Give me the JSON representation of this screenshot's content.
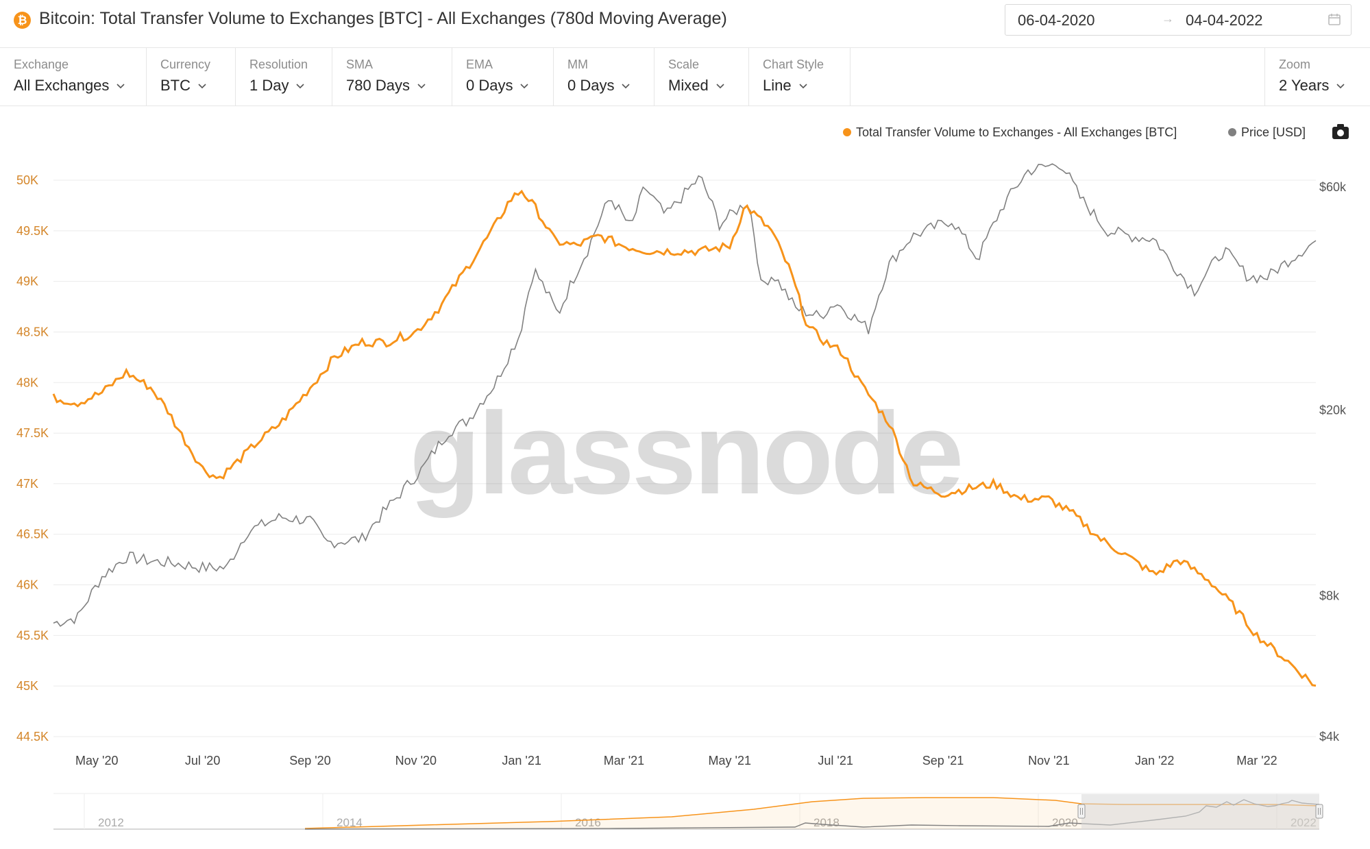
{
  "header": {
    "logo_glyph": "₿",
    "title": "Bitcoin: Total Transfer Volume to Exchanges [BTC] - All Exchanges (780d Moving Average)",
    "date_from": "06-04-2020",
    "date_arrow": "→",
    "date_to": "04-04-2022"
  },
  "controls": [
    {
      "label": "Exchange",
      "value": "All Exchanges"
    },
    {
      "label": "Currency",
      "value": "BTC"
    },
    {
      "label": "Resolution",
      "value": "1 Day"
    },
    {
      "label": "SMA",
      "value": "780 Days"
    },
    {
      "label": "EMA",
      "value": "0 Days"
    },
    {
      "label": "MM",
      "value": "0 Days"
    },
    {
      "label": "Scale",
      "value": "Mixed"
    },
    {
      "label": "Chart Style",
      "value": "Line"
    },
    {
      "label": "Zoom",
      "value": "2 Years"
    }
  ],
  "colors": {
    "volume": "#f7931a",
    "price": "#808080",
    "grid": "#ebebeb",
    "navigator_mask": "#d9d9d9"
  },
  "watermark": "glassnode",
  "chart_data": {
    "type": "line",
    "x_ticks": [
      "May '20",
      "Jul '20",
      "Sep '20",
      "Nov '20",
      "Jan '21",
      "Mar '21",
      "May '21",
      "Jul '21",
      "Sep '21",
      "Nov '21",
      "Jan '22",
      "Mar '22"
    ],
    "y_left_ticks": [
      "50K",
      "49.5K",
      "49K",
      "48.5K",
      "48K",
      "47.5K",
      "47K",
      "46.5K",
      "46K",
      "45.5K",
      "45K",
      "44.5K"
    ],
    "y_left_range": [
      44500,
      50000
    ],
    "y_right_ticks": [
      "$60k",
      "$20k",
      "$8k",
      "$4k"
    ],
    "y_right_scale": "log",
    "y_right_range": [
      4000,
      60000
    ],
    "grid": true,
    "legend_position": "top-right",
    "series": [
      {
        "name": "Total Transfer Volume to Exchanges - All Exchanges [BTC]",
        "axis": "left",
        "color": "#f7931a",
        "x": [
          "2020-04-06",
          "2020-04-20",
          "2020-05-04",
          "2020-05-18",
          "2020-06-01",
          "2020-06-10",
          "2020-06-20",
          "2020-07-01",
          "2020-07-10",
          "2020-07-20",
          "2020-08-01",
          "2020-08-15",
          "2020-09-01",
          "2020-09-15",
          "2020-10-01",
          "2020-10-15",
          "2020-11-01",
          "2020-11-15",
          "2020-12-01",
          "2020-12-15",
          "2020-12-25",
          "2021-01-01",
          "2021-01-10",
          "2021-01-20",
          "2021-02-01",
          "2021-02-15",
          "2021-03-01",
          "2021-03-15",
          "2021-04-01",
          "2021-04-15",
          "2021-05-01",
          "2021-05-10",
          "2021-05-16",
          "2021-05-25",
          "2021-06-05",
          "2021-06-15",
          "2021-06-25",
          "2021-07-05",
          "2021-07-15",
          "2021-08-01",
          "2021-08-15",
          "2021-09-01",
          "2021-09-15",
          "2021-10-01",
          "2021-10-15",
          "2021-11-01",
          "2021-11-15",
          "2021-12-01",
          "2021-12-15",
          "2022-01-01",
          "2022-01-15",
          "2022-02-01",
          "2022-02-15",
          "2022-03-01",
          "2022-03-15",
          "2022-04-04"
        ],
        "y": [
          47850,
          47800,
          47900,
          48100,
          47950,
          47750,
          47450,
          47150,
          47050,
          47200,
          47400,
          47600,
          47950,
          48250,
          48400,
          48400,
          48500,
          48750,
          49150,
          49500,
          49800,
          49900,
          49700,
          49400,
          49350,
          49450,
          49350,
          49300,
          49300,
          49300,
          49350,
          49750,
          49650,
          49500,
          49100,
          48550,
          48400,
          48300,
          48000,
          47600,
          47000,
          46900,
          46950,
          47000,
          46850,
          46850,
          46700,
          46450,
          46300,
          46100,
          46250,
          46050,
          45800,
          45500,
          45300,
          45000
        ]
      },
      {
        "name": "Price [USD]",
        "axis": "right",
        "color": "#808080",
        "x": [
          "2020-04-06",
          "2020-04-20",
          "2020-05-04",
          "2020-05-18",
          "2020-06-01",
          "2020-06-15",
          "2020-07-01",
          "2020-07-15",
          "2020-07-27",
          "2020-08-15",
          "2020-09-01",
          "2020-09-10",
          "2020-10-01",
          "2020-10-21",
          "2020-11-05",
          "2020-11-20",
          "2020-12-01",
          "2020-12-17",
          "2020-12-31",
          "2021-01-08",
          "2021-01-22",
          "2021-02-08",
          "2021-02-21",
          "2021-03-05",
          "2021-03-13",
          "2021-03-25",
          "2021-04-14",
          "2021-04-25",
          "2021-05-12",
          "2021-05-19",
          "2021-05-26",
          "2021-06-08",
          "2021-06-22",
          "2021-07-01",
          "2021-07-20",
          "2021-08-01",
          "2021-08-14",
          "2021-09-06",
          "2021-09-21",
          "2021-10-06",
          "2021-10-20",
          "2021-11-08",
          "2021-11-19",
          "2021-12-04",
          "2021-12-20",
          "2022-01-01",
          "2022-01-10",
          "2022-01-24",
          "2022-02-10",
          "2022-02-24",
          "2022-03-07",
          "2022-03-20",
          "2022-04-04"
        ],
        "y": [
          7000,
          7200,
          8800,
          9700,
          9500,
          9400,
          9200,
          9200,
          11000,
          11800,
          11600,
          10400,
          10600,
          13000,
          15000,
          18000,
          19000,
          22800,
          29000,
          40000,
          32000,
          44000,
          57000,
          49000,
          60000,
          52000,
          63000,
          50000,
          56000,
          37000,
          39000,
          33000,
          31700,
          34000,
          29800,
          41000,
          47000,
          51000,
          42000,
          55000,
          65000,
          67500,
          57000,
          48500,
          47000,
          46500,
          41500,
          36000,
          44000,
          38500,
          38500,
          42000,
          46000
        ]
      }
    ],
    "navigator": {
      "x_ticks": [
        "2012",
        "2014",
        "2016",
        "2018",
        "2020",
        "2022"
      ]
    }
  }
}
